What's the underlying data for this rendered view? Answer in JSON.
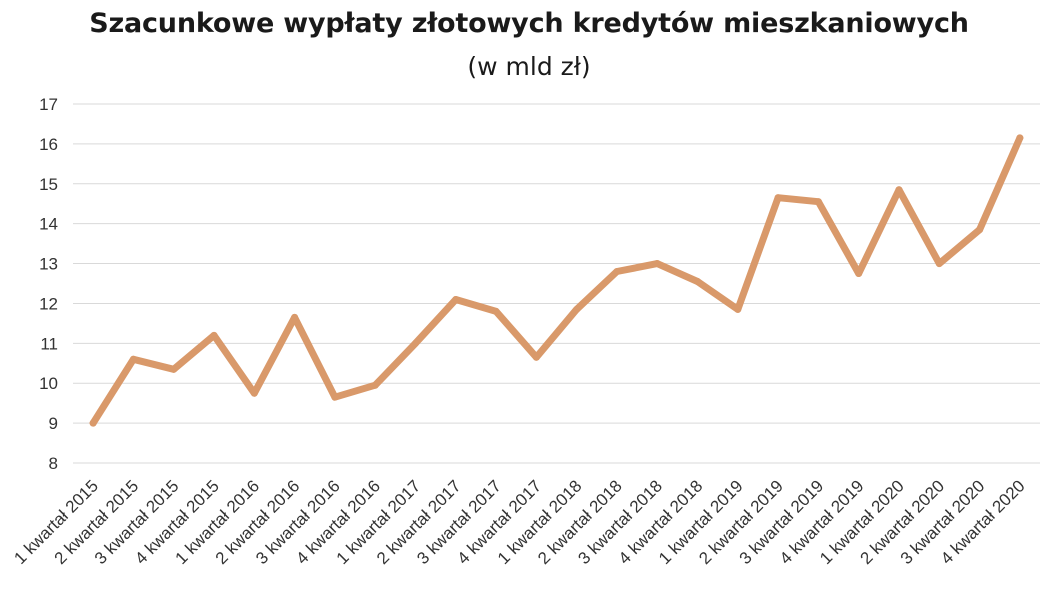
{
  "chart_data": {
    "type": "line",
    "title": "Szacunkowe wypłaty złotowych kredytów mieszkaniowych",
    "subtitle": "(w mld zł)",
    "categories": [
      "1 kwartał 2015",
      "2 kwartał 2015",
      "3 kwartał 2015",
      "4 kwartał 2015",
      "1 kwartał 2016",
      "2 kwartał 2016",
      "3 kwartał 2016",
      "4 kwartał 2016",
      "1 kwartał 2017",
      "2 kwartał 2017",
      "3 kwartał 2017",
      "4 kwartał 2017",
      "1 kwartał 2018",
      "2 kwartał 2018",
      "3 kwartał 2018",
      "4 kwartał 2018",
      "1 kwartał 2019",
      "2 kwartał 2019",
      "3 kwartał 2019",
      "4 kwartał 2019",
      "1 kwartał 2020",
      "2 kwartał 2020",
      "3 kwartał 2020",
      "4 kwartał 2020"
    ],
    "series": [
      {
        "values": [
          9.0,
          10.6,
          10.35,
          11.2,
          9.75,
          11.65,
          9.65,
          9.95,
          11.0,
          12.1,
          11.8,
          10.65,
          11.85,
          12.8,
          13.0,
          12.55,
          11.85,
          14.65,
          14.55,
          12.75,
          14.85,
          13.0,
          13.85,
          16.15
        ]
      }
    ],
    "yticks": [
      8,
      9,
      10,
      11,
      12,
      13,
      14,
      15,
      16,
      17
    ],
    "ylim": [
      8,
      17
    ],
    "grid": true,
    "line_color": "#D9996A",
    "grid_color": "#D9D9D9"
  }
}
